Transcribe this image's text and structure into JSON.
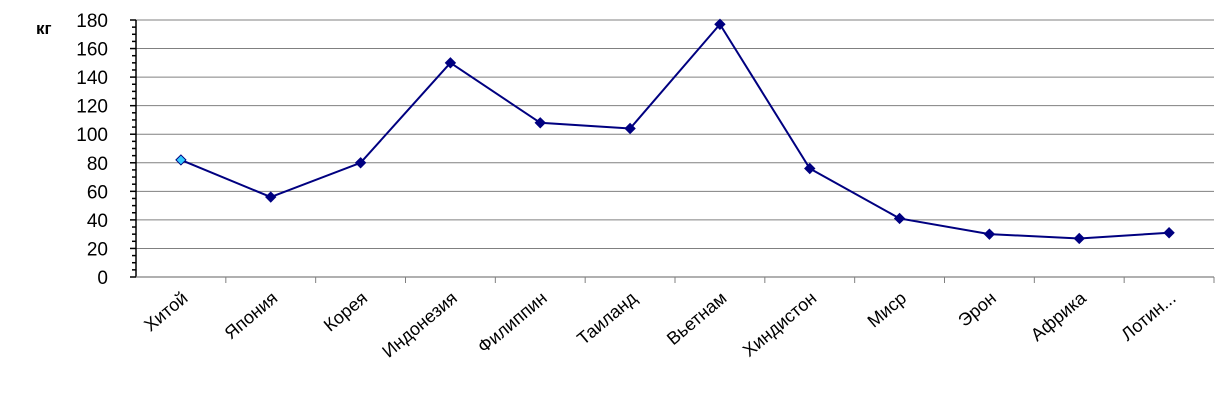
{
  "chart_data": {
    "type": "line",
    "ylabel": "кг",
    "categories": [
      "Хитой",
      "Япония",
      "Корея",
      "Индонезия",
      "Филиппин",
      "Таиланд",
      "Вьетнам",
      "Хиндистон",
      "Миср",
      "Эрон",
      "Африка",
      "Лотин..."
    ],
    "series": [
      {
        "values": [
          82,
          56,
          80,
          150,
          108,
          104,
          177,
          76,
          41,
          30,
          27,
          31
        ]
      }
    ],
    "ylim": [
      0,
      180
    ],
    "yticks": [
      "0",
      "20",
      "40",
      "60",
      "80",
      "100",
      "120",
      "140",
      "160",
      "180"
    ],
    "grid": true,
    "legend": "none",
    "colors": {
      "line": "#000080",
      "marker": "#000080",
      "highlight_marker": "#33ccff",
      "grid": "#808080"
    }
  }
}
